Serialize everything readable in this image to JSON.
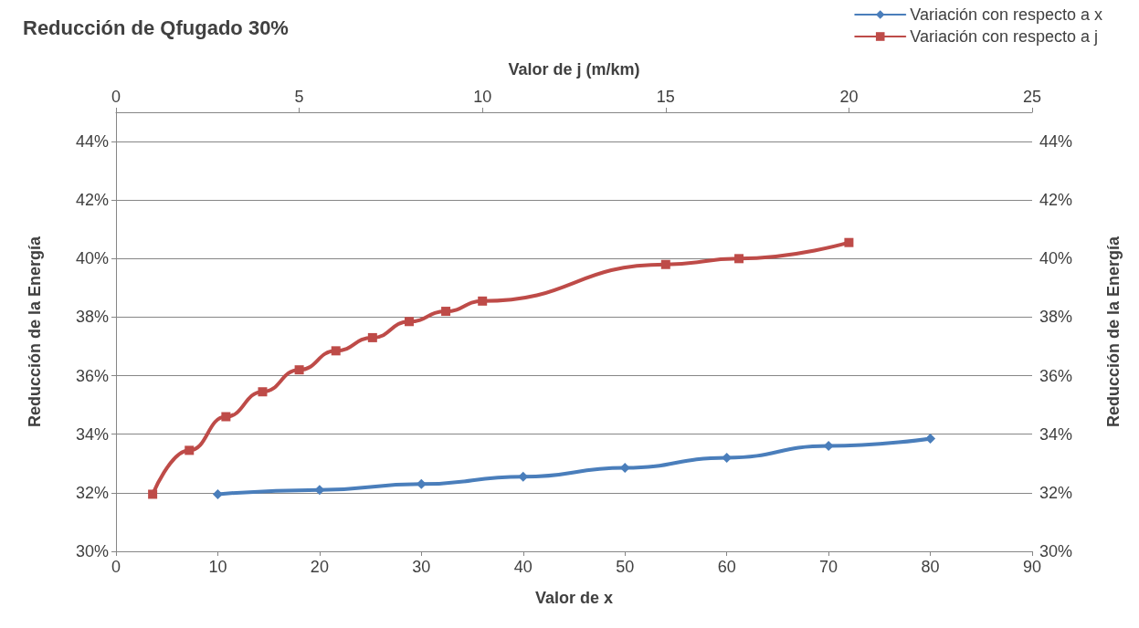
{
  "chart_data": {
    "type": "line",
    "title": "Reducción de Qfugado 30%",
    "xlabel": "Valor de x",
    "x2label": "Valor de j (m/km)",
    "ylabel": "Reducción de la Energía",
    "y2label": "Reducción de la Energía",
    "xlim": [
      0,
      90
    ],
    "xticks": [
      0,
      10,
      20,
      30,
      40,
      50,
      60,
      70,
      80,
      90
    ],
    "x2lim": [
      0,
      25
    ],
    "x2ticks": [
      0,
      5,
      10,
      15,
      20,
      25
    ],
    "ylim": [
      30,
      45
    ],
    "yticks": [
      {
        "value": 30,
        "label": "30%"
      },
      {
        "value": 32,
        "label": "32%"
      },
      {
        "value": 34,
        "label": "34%"
      },
      {
        "value": 36,
        "label": "36%"
      },
      {
        "value": 38,
        "label": "38%"
      },
      {
        "value": 40,
        "label": "40%"
      },
      {
        "value": 42,
        "label": "42%"
      },
      {
        "value": 44,
        "label": "44%"
      }
    ],
    "y2lim": [
      30,
      45
    ],
    "y2ticks": [
      {
        "value": 30,
        "label": "30%"
      },
      {
        "value": 32,
        "label": "32%"
      },
      {
        "value": 34,
        "label": "34%"
      },
      {
        "value": 36,
        "label": "36%"
      },
      {
        "value": 38,
        "label": "38%"
      },
      {
        "value": 40,
        "label": "40%"
      },
      {
        "value": 42,
        "label": "42%"
      },
      {
        "value": 44,
        "label": "44%"
      }
    ],
    "grid": "y",
    "legend": "top right",
    "line_style": "solid",
    "series": [
      {
        "name": "Variación con respecto a x",
        "color": "#4a7ebb",
        "marker": "diamond",
        "x": [
          10,
          20,
          30,
          40,
          50,
          60,
          70,
          80
        ],
        "values": [
          31.95,
          32.1,
          32.3,
          32.55,
          32.85,
          33.2,
          33.6,
          33.85
        ]
      },
      {
        "name": "Variación con respecto a j",
        "color": "#be4b48",
        "marker": "square",
        "axis": "x2",
        "x": [
          1,
          2,
          3,
          4,
          5,
          6,
          7,
          8,
          9,
          10,
          15,
          17,
          20
        ],
        "values": [
          31.95,
          33.45,
          34.6,
          35.45,
          36.2,
          36.85,
          37.3,
          37.85,
          38.2,
          38.55,
          39.8,
          40.0,
          40.55
        ]
      }
    ]
  }
}
